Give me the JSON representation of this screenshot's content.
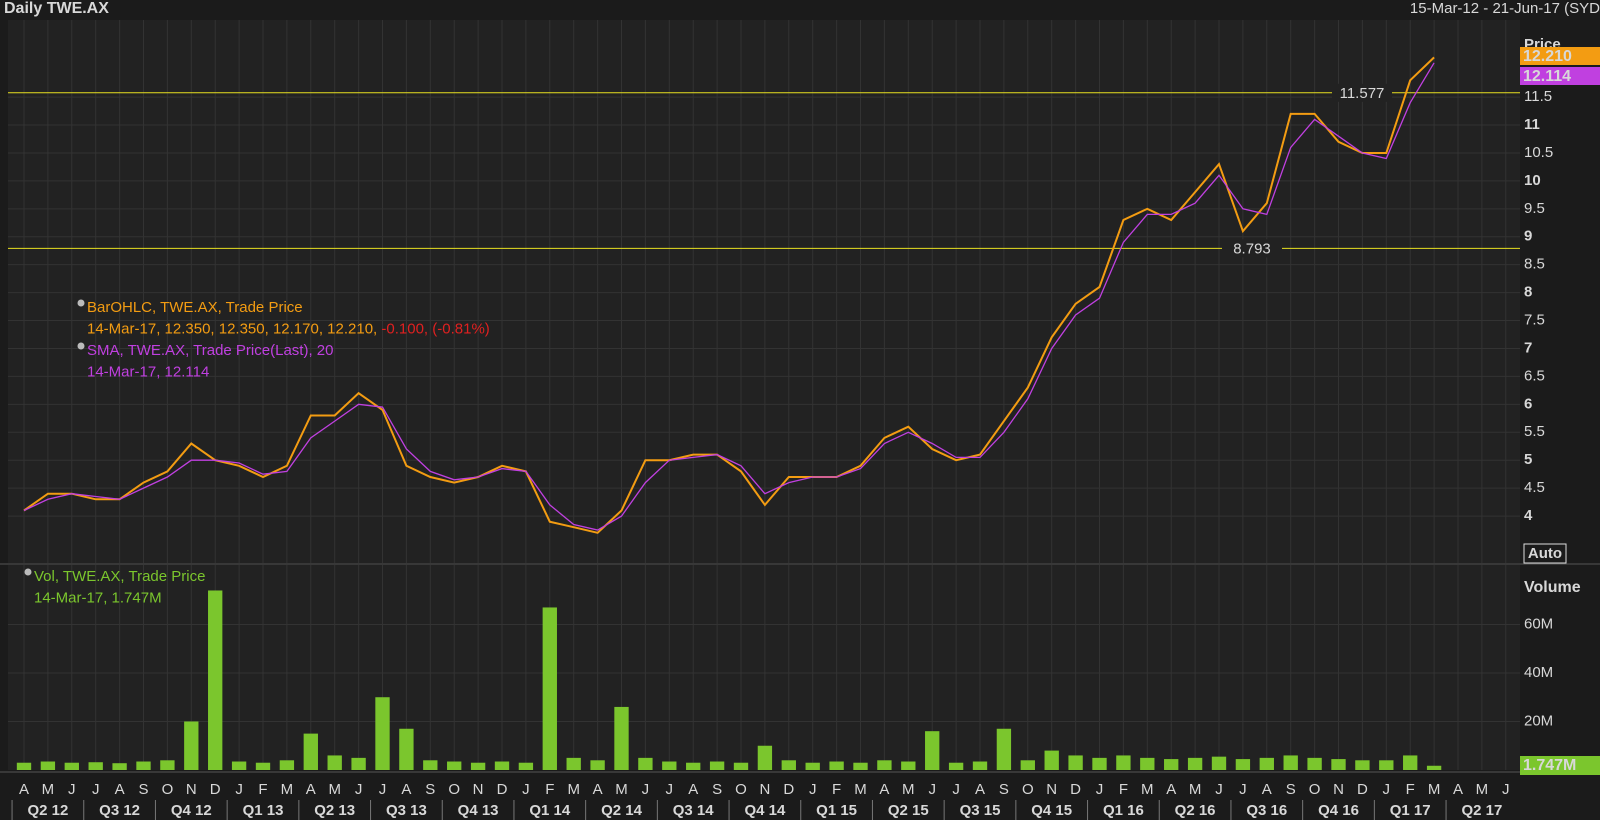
{
  "header": {
    "title": "Daily TWE.AX",
    "range": "15-Mar-12 - 21-Jun-17 (SYD"
  },
  "chart_data": [
    {
      "type": "line",
      "axis_title": "Price",
      "scale_button": "Auto",
      "categories": [
        "A",
        "M",
        "J",
        "J",
        "A",
        "S",
        "O",
        "N",
        "D",
        "J",
        "F",
        "M",
        "A",
        "M",
        "J",
        "J",
        "A",
        "S",
        "O",
        "N",
        "D",
        "J",
        "F",
        "M",
        "A",
        "M",
        "J",
        "J",
        "A",
        "S",
        "O",
        "N",
        "D",
        "J",
        "F",
        "M",
        "A",
        "M",
        "J",
        "J",
        "A",
        "S",
        "O",
        "N",
        "D",
        "J",
        "F",
        "M",
        "A",
        "M",
        "J",
        "J",
        "A",
        "S",
        "O",
        "N",
        "D",
        "J",
        "F",
        "M",
        "A",
        "M",
        "J"
      ],
      "quarters": [
        "Q2 12",
        "Q3 12",
        "Q4 12",
        "Q1 13",
        "Q2 13",
        "Q3 13",
        "Q4 13",
        "Q1 14",
        "Q2 14",
        "Q3 14",
        "Q4 14",
        "Q1 15",
        "Q2 15",
        "Q3 15",
        "Q4 15",
        "Q1 16",
        "Q2 16",
        "Q3 16",
        "Q4 16",
        "Q1 17",
        "Q2 17"
      ],
      "series": [
        {
          "name": "BarOHLC, TWE.AX, Trade Price",
          "color": "#f39c12",
          "values": [
            4.1,
            4.4,
            4.4,
            4.3,
            4.3,
            4.6,
            4.8,
            5.3,
            5.0,
            4.9,
            4.7,
            4.9,
            5.8,
            5.8,
            6.2,
            5.9,
            4.9,
            4.7,
            4.6,
            4.7,
            4.9,
            4.8,
            3.9,
            3.8,
            3.7,
            4.1,
            5.0,
            5.0,
            5.1,
            5.1,
            4.8,
            4.2,
            4.7,
            4.7,
            4.7,
            4.9,
            5.4,
            5.6,
            5.2,
            5.0,
            5.1,
            5.7,
            6.3,
            7.2,
            7.8,
            8.1,
            9.3,
            9.5,
            9.3,
            9.8,
            10.3,
            9.1,
            9.6,
            11.2,
            11.2,
            10.7,
            10.5,
            10.5,
            11.8,
            12.21,
            null,
            null,
            null
          ]
        },
        {
          "name": "SMA, TWE.AX, Trade Price(Last),  20",
          "color": "#c040e0",
          "values": [
            4.1,
            4.3,
            4.4,
            4.35,
            4.3,
            4.5,
            4.7,
            5.0,
            5.0,
            4.95,
            4.75,
            4.8,
            5.4,
            5.7,
            6.0,
            5.95,
            5.2,
            4.8,
            4.65,
            4.7,
            4.85,
            4.8,
            4.2,
            3.85,
            3.75,
            4.0,
            4.6,
            5.0,
            5.05,
            5.1,
            4.9,
            4.4,
            4.6,
            4.7,
            4.7,
            4.85,
            5.3,
            5.5,
            5.3,
            5.05,
            5.05,
            5.5,
            6.1,
            7.0,
            7.6,
            7.9,
            8.9,
            9.4,
            9.4,
            9.6,
            10.1,
            9.5,
            9.4,
            10.6,
            11.1,
            10.8,
            10.5,
            10.4,
            11.4,
            12.114,
            null,
            null,
            null
          ]
        }
      ],
      "legend_lines": [
        [
          {
            "text": "BarOHLC, TWE.AX, Trade Price",
            "color": "#f39c12"
          }
        ],
        [
          {
            "text": "14-Mar-17, 12.350, 12.350, 12.170, 12.210,",
            "color": "#f39c12"
          },
          {
            "text": " -0.100, (-0.81%)",
            "color": "#e02020"
          }
        ],
        [
          {
            "text": "SMA, TWE.AX, Trade Price(Last),  20",
            "color": "#c040e0"
          }
        ],
        [
          {
            "text": "14-Mar-17, 12.114",
            "color": "#c040e0"
          }
        ]
      ],
      "hlines": [
        11.577,
        8.793
      ],
      "hline_color": "#e8e020",
      "last_labels": [
        {
          "value": 12.21,
          "label": "12.210"
        },
        {
          "value": 12.114,
          "label": "12.114"
        }
      ],
      "ylim": [
        3.16,
        12.88
      ],
      "yticks": [
        4,
        4.5,
        5,
        5.5,
        6,
        6.5,
        7,
        7.5,
        8,
        8.5,
        9,
        9.5,
        10,
        10.5,
        11,
        11.5
      ],
      "grid": true
    },
    {
      "type": "bar",
      "axis_title": "Volume",
      "series": [
        {
          "name": "Vol, TWE.AX, Trade Price",
          "color": "#7bc62d",
          "values": [
            3000000,
            3500000,
            3000000,
            3200000,
            2800000,
            3500000,
            4000000,
            20000000,
            74000000,
            3500000,
            3000000,
            4000000,
            15000000,
            6000000,
            5000000,
            30000000,
            17000000,
            4000000,
            3500000,
            3000000,
            3500000,
            3000000,
            67000000,
            5000000,
            4000000,
            26000000,
            5000000,
            3500000,
            3000000,
            3500000,
            3000000,
            10000000,
            4000000,
            3000000,
            3500000,
            3000000,
            4000000,
            3500000,
            16000000,
            3000000,
            3500000,
            17000000,
            4000000,
            8000000,
            6000000,
            5000000,
            6000000,
            5000000,
            4500000,
            5000000,
            5500000,
            4500000,
            5000000,
            6000000,
            5000000,
            4500000,
            4000000,
            4000000,
            6000000,
            1747000,
            null,
            null,
            null
          ]
        }
      ],
      "legend_lines": [
        [
          {
            "text": "Vol, TWE.AX, Trade Price",
            "color": "#7bc62d"
          }
        ],
        [
          {
            "text": "14-Mar-17, 1.747M",
            "color": "#7bc62d"
          }
        ]
      ],
      "last_labels": [
        {
          "value": 1747000,
          "label": "1.747M"
        }
      ],
      "ylim": [
        0,
        84500000
      ],
      "yticks": [
        {
          "value": 20000000,
          "label": "20M"
        },
        {
          "value": 40000000,
          "label": "40M"
        },
        {
          "value": 60000000,
          "label": "60M"
        }
      ],
      "grid": true
    }
  ]
}
